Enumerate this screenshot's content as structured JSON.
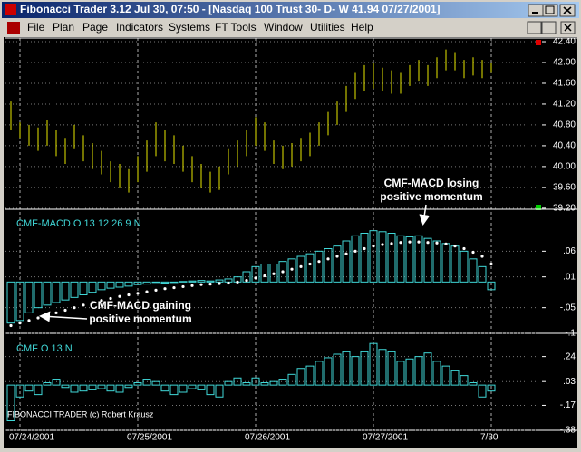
{
  "window": {
    "title": "Fibonacci Trader 3.12 Jul 30,  07:50 - [Nasdaq 100 Trust  30- D- W 41.94 07/27/2001]",
    "menu": [
      "File",
      "Plan",
      "Page",
      "Indicators",
      "Systems",
      "FT Tools",
      "Window",
      "Utilities",
      "Help"
    ]
  },
  "watermark": "FIBONACCI TRADER (c) Robert Krausz",
  "chart_data": [
    {
      "type": "hilo",
      "color": "#e8e800",
      "ylim": [
        39.18,
        42.47
      ],
      "yticks": [
        {
          "value": 42.4,
          "label": "42.40"
        },
        {
          "value": 42.0,
          "label": "42.00"
        },
        {
          "value": 41.6,
          "label": "41.60"
        },
        {
          "value": 41.2,
          "label": "41.20"
        },
        {
          "value": 40.8,
          "label": "40.80"
        },
        {
          "value": 40.4,
          "label": "40.40"
        },
        {
          "value": 40.0,
          "label": "40.00"
        },
        {
          "value": 39.6,
          "label": "39.60"
        },
        {
          "value": 39.2,
          "label": "39.20"
        }
      ],
      "high": [
        41.25,
        40.85,
        40.8,
        40.75,
        40.9,
        40.7,
        40.55,
        40.8,
        40.6,
        40.45,
        40.3,
        40.1,
        40.05,
        39.95,
        40.2,
        40.5,
        40.85,
        40.7,
        40.6,
        40.4,
        40.2,
        40.05,
        39.9,
        40.0,
        40.35,
        40.5,
        40.7,
        40.95,
        40.85,
        40.5,
        40.4,
        40.45,
        40.55,
        40.65,
        40.85,
        41.05,
        41.25,
        41.55,
        41.8,
        41.95,
        42.0,
        41.9,
        41.85,
        41.8,
        41.95,
        42.05,
        41.95,
        42.1,
        42.25,
        42.2,
        42.05,
        42.1,
        42.05,
        42.0
      ],
      "low": [
        40.7,
        40.55,
        40.4,
        40.3,
        40.4,
        40.2,
        40.05,
        40.35,
        40.1,
        39.95,
        39.85,
        39.7,
        39.6,
        39.5,
        39.7,
        39.9,
        40.2,
        40.1,
        40.05,
        39.9,
        39.7,
        39.6,
        39.5,
        39.55,
        39.85,
        40.0,
        40.2,
        40.4,
        40.3,
        40.05,
        39.95,
        40.0,
        40.1,
        40.2,
        40.4,
        40.6,
        40.8,
        41.05,
        41.3,
        41.45,
        41.5,
        41.45,
        41.4,
        41.4,
        41.55,
        41.65,
        41.55,
        41.7,
        41.85,
        41.85,
        41.7,
        41.75,
        41.7,
        41.8
      ]
    },
    {
      "type": "combo",
      "label": "CMF-MACD O 13 12 26 9 N",
      "ylim": [
        -0.1,
        0.14
      ],
      "yticks": [
        {
          "value": 0.06,
          "label": ".06"
        },
        {
          "value": 0.01,
          "label": ".01"
        },
        {
          "value": -0.05,
          "label": "-.05"
        },
        {
          "value": -0.1,
          "label": "-.1"
        }
      ],
      "series": [
        {
          "kind": "bar",
          "color": "#40d8d8",
          "values": [
            -0.08,
            -0.075,
            -0.06,
            -0.05,
            -0.045,
            -0.04,
            -0.035,
            -0.03,
            -0.025,
            -0.02,
            -0.015,
            -0.012,
            -0.01,
            -0.008,
            -0.005,
            -0.004,
            0.0,
            -0.002,
            -0.001,
            0.001,
            0.002,
            0.003,
            0.002,
            0.004,
            0.006,
            0.01,
            0.02,
            0.03,
            0.035,
            0.035,
            0.04,
            0.045,
            0.05,
            0.055,
            0.06,
            0.065,
            0.07,
            0.08,
            0.09,
            0.095,
            0.1,
            0.098,
            0.095,
            0.09,
            0.088,
            0.09,
            0.085,
            0.08,
            0.075,
            0.07,
            0.06,
            0.045,
            0.03,
            -0.015
          ]
        },
        {
          "kind": "dots",
          "color": "#ffffff",
          "values": [
            -0.085,
            -0.08,
            -0.075,
            -0.07,
            -0.065,
            -0.06,
            -0.055,
            -0.05,
            -0.045,
            -0.04,
            -0.036,
            -0.032,
            -0.028,
            -0.025,
            -0.022,
            -0.019,
            -0.016,
            -0.013,
            -0.011,
            -0.009,
            -0.007,
            -0.005,
            -0.004,
            -0.003,
            -0.002,
            0.0,
            0.003,
            0.008,
            0.012,
            0.016,
            0.02,
            0.025,
            0.03,
            0.035,
            0.04,
            0.045,
            0.05,
            0.055,
            0.06,
            0.065,
            0.07,
            0.073,
            0.075,
            0.077,
            0.078,
            0.078,
            0.077,
            0.076,
            0.074,
            0.07,
            0.065,
            0.058,
            0.05,
            0.035
          ]
        }
      ],
      "annotations": [
        {
          "lines": [
            "CMF-MACD losing",
            "positive momentum"
          ]
        },
        {
          "lines": [
            "CMF-MACD gaining",
            "positive momentum"
          ]
        }
      ]
    },
    {
      "type": "bar",
      "label": "CMF O 13 N",
      "color": "#40d8d8",
      "ylim": [
        -0.38,
        0.42
      ],
      "yticks": [
        {
          "value": 0.24,
          "label": ".24"
        },
        {
          "value": 0.03,
          "label": ".03"
        },
        {
          "value": -0.17,
          "label": "-.17"
        },
        {
          "value": -0.38,
          "label": "-.38"
        }
      ],
      "categories": [
        null,
        "07/24/2001",
        null,
        null,
        null,
        null,
        null,
        null,
        null,
        null,
        null,
        null,
        null,
        null,
        "07/25/2001",
        null,
        null,
        null,
        null,
        null,
        null,
        null,
        null,
        null,
        null,
        null,
        null,
        "07/26/2001",
        null,
        null,
        null,
        null,
        null,
        null,
        null,
        null,
        null,
        null,
        null,
        null,
        "07/27/2001",
        null,
        null,
        null,
        null,
        null,
        null,
        null,
        null,
        null,
        null,
        null,
        null,
        "7/30"
      ],
      "values": [
        -0.3,
        -0.1,
        -0.05,
        -0.08,
        0.02,
        0.05,
        -0.02,
        -0.06,
        -0.05,
        -0.04,
        -0.03,
        -0.05,
        -0.06,
        -0.02,
        0.02,
        0.05,
        0.03,
        -0.05,
        -0.08,
        -0.06,
        -0.03,
        -0.04,
        -0.08,
        -0.1,
        0.03,
        0.06,
        0.02,
        0.06,
        0.02,
        0.03,
        0.05,
        0.09,
        0.14,
        0.16,
        0.2,
        0.23,
        0.26,
        0.28,
        0.24,
        0.28,
        0.35,
        0.3,
        0.28,
        0.2,
        0.22,
        0.24,
        0.27,
        0.2,
        0.16,
        0.12,
        0.08,
        0.02,
        -0.1,
        -0.05
      ]
    }
  ]
}
